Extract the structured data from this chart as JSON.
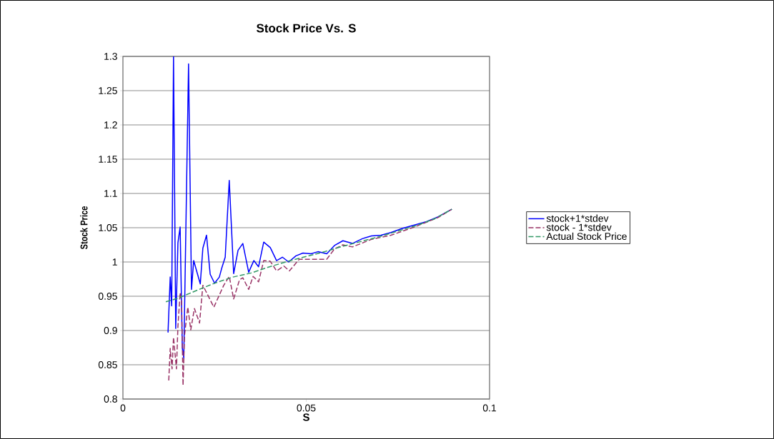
{
  "chart_data": {
    "type": "line",
    "title": "Stock Price Vs. S",
    "xlabel": "S",
    "ylabel": "Stock Price",
    "xlim": [
      0,
      0.1
    ],
    "xticks": [
      0,
      0.05,
      0.1
    ],
    "ylim": [
      0.8,
      1.3
    ],
    "yticks": [
      0.8,
      0.85,
      0.9,
      0.95,
      1,
      1.05,
      1.1,
      1.15,
      1.2,
      1.25,
      1.3
    ],
    "grid": "y",
    "legend": "right",
    "marker": "none",
    "series": [
      {
        "name": "stock+1*stdev",
        "color": "#0000ff",
        "line_style": "solid",
        "x": [
          0.0123,
          0.0129,
          0.0133,
          0.0138,
          0.0144,
          0.015,
          0.0156,
          0.0162,
          0.0166,
          0.0179,
          0.0187,
          0.0193,
          0.0211,
          0.0218,
          0.0228,
          0.0238,
          0.025,
          0.0263,
          0.0269,
          0.0279,
          0.029,
          0.0302,
          0.0314,
          0.0327,
          0.0343,
          0.0357,
          0.037,
          0.0384,
          0.0402,
          0.0419,
          0.0435,
          0.0452,
          0.0472,
          0.0491,
          0.0513,
          0.0532,
          0.0556,
          0.0577,
          0.06,
          0.0626,
          0.0653,
          0.0678,
          0.0704,
          0.0731,
          0.0762,
          0.0795,
          0.0828,
          0.086,
          0.0897
        ],
        "values": [
          0.897,
          0.978,
          0.936,
          1.3,
          0.903,
          1.028,
          1.051,
          0.874,
          0.86,
          1.289,
          0.96,
          1.002,
          0.968,
          1.02,
          1.039,
          0.982,
          0.969,
          0.978,
          0.99,
          1.007,
          1.119,
          0.983,
          1.017,
          1.027,
          0.985,
          1.002,
          0.993,
          1.029,
          1.021,
          1.002,
          1.007,
          1.0,
          1.009,
          1.013,
          1.012,
          1.015,
          1.012,
          1.024,
          1.031,
          1.027,
          1.034,
          1.038,
          1.039,
          1.043,
          1.049,
          1.054,
          1.059,
          1.066,
          1.077
        ]
      },
      {
        "name": "stock - 1*stdev",
        "color": "#993366",
        "line_style": "dashed",
        "x": [
          0.0125,
          0.0129,
          0.0134,
          0.0138,
          0.0146,
          0.015,
          0.0156,
          0.016,
          0.0164,
          0.0168,
          0.0177,
          0.0185,
          0.0195,
          0.0209,
          0.0218,
          0.0248,
          0.0275,
          0.029,
          0.0302,
          0.0318,
          0.0327,
          0.0343,
          0.0355,
          0.037,
          0.0384,
          0.0402,
          0.0419,
          0.0439,
          0.0454,
          0.0481,
          0.0556,
          0.0577,
          0.06,
          0.0626,
          0.0678,
          0.0731,
          0.0795,
          0.086,
          0.0897
        ],
        "values": [
          0.827,
          0.874,
          0.844,
          0.89,
          0.844,
          0.906,
          0.955,
          0.942,
          0.82,
          0.893,
          0.934,
          0.901,
          0.932,
          0.911,
          0.966,
          0.934,
          0.966,
          0.979,
          0.946,
          0.974,
          0.977,
          0.96,
          0.979,
          0.971,
          1.002,
          1.001,
          0.987,
          0.994,
          0.987,
          1.004,
          1.004,
          1.019,
          1.025,
          1.022,
          1.033,
          1.039,
          1.051,
          1.065,
          1.077
        ]
      },
      {
        "name": "Actual Stock Price",
        "color": "#339966",
        "line_style": "dashed",
        "x": [
          0.0117,
          0.015,
          0.019,
          0.025,
          0.03,
          0.035,
          0.04,
          0.045,
          0.05,
          0.055,
          0.06,
          0.065,
          0.07,
          0.075,
          0.08,
          0.085,
          0.0897
        ],
        "values": [
          0.942,
          0.947,
          0.956,
          0.969,
          0.978,
          0.984,
          0.993,
          1.001,
          1.008,
          1.015,
          1.023,
          1.03,
          1.037,
          1.045,
          1.053,
          1.063,
          1.077
        ]
      }
    ]
  }
}
